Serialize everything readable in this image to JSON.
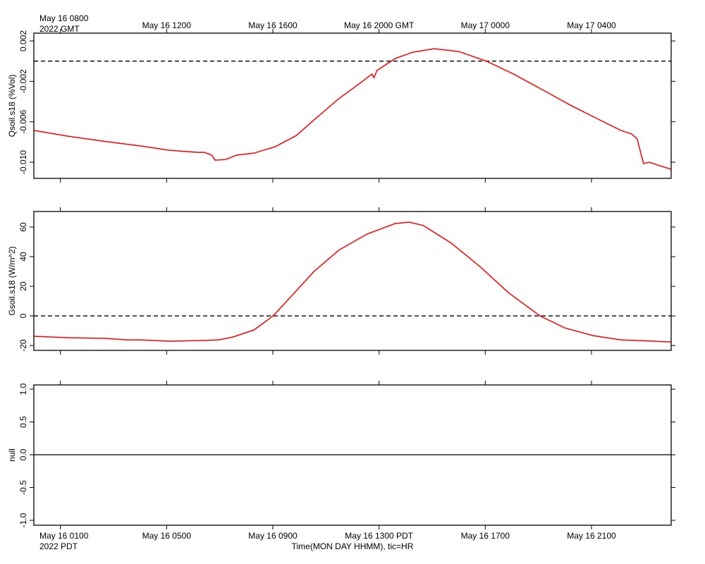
{
  "x_axis": {
    "xlim": [
      0,
      24
    ],
    "xticks": [
      {
        "value": 1,
        "label": "May 16 0100"
      },
      {
        "value": 5,
        "label": "May 16 0500"
      },
      {
        "value": 9,
        "label": "May 16 0900"
      },
      {
        "value": 13,
        "label": "May 16 1300 PDT"
      },
      {
        "value": 17,
        "label": "May 16 1700"
      },
      {
        "value": 21,
        "label": "May 16 2100"
      }
    ],
    "top_labels": [
      "May 16 0800",
      "May 16 1200",
      "May 16 1600",
      "May 16 2000 GMT",
      "May 17 0000",
      "May 17 0400"
    ],
    "top_unit_label": "2022 GMT",
    "bottom_unit_label": "2022 PDT",
    "xlabel": "Time(MON DAY HHMM), tic=HR"
  },
  "chart_data": [
    {
      "type": "line",
      "ylabel": "Qsoil.s18 (%Vol)",
      "ylim": [
        -0.0116,
        0.00277
      ],
      "yticks": [
        0.002,
        -0.002,
        -0.006,
        {
          "value": -0.01,
          "label": "-0.010"
        }
      ],
      "ref_line": {
        "value": 0,
        "style": "dashed"
      },
      "series": [
        {
          "color": "#ff0000",
          "x": [
            0,
            1.28,
            2.58,
            4.04,
            5.1,
            6.17,
            6.43,
            6.7,
            6.83,
            7.23,
            7.63,
            8.29,
            9.09,
            9.89,
            10.55,
            11.48,
            12.28,
            12.73,
            12.81,
            12.92,
            13.61,
            14.27,
            15.07,
            16.0,
            17.06,
            18.12,
            19.19,
            20.25,
            21.31,
            22.11,
            22.51,
            22.72,
            22.96,
            23.17,
            23.57,
            24.0
          ],
          "values": [
            -0.00686,
            -0.00742,
            -0.00791,
            -0.0084,
            -0.00882,
            -0.00903,
            -0.00903,
            -0.00931,
            -0.0098,
            -0.00973,
            -0.00931,
            -0.0091,
            -0.00847,
            -0.00735,
            -0.00582,
            -0.00372,
            -0.00219,
            -0.00128,
            -0.00163,
            -0.00093,
            0.00026,
            0.00088,
            0.00123,
            0.00095,
            -2e-05,
            -0.00135,
            -0.00289,
            -0.00442,
            -0.00582,
            -0.00686,
            -0.00721,
            -0.0077,
            -0.01014,
            -0.01,
            -0.01035,
            -0.0107
          ]
        }
      ]
    },
    {
      "type": "line",
      "ylabel": "Gsoil.s18 (W/m^2)",
      "ylim": [
        -23.3,
        70.5
      ],
      "yticks": [
        -20,
        0,
        20,
        40,
        60
      ],
      "ref_line": {
        "value": 0,
        "style": "dashed"
      },
      "series": [
        {
          "color": "#ff0000",
          "x": [
            0,
            1.38,
            2.71,
            3.51,
            4.04,
            5.1,
            6.17,
            6.96,
            7.49,
            8.29,
            9.01,
            9.75,
            10.55,
            11.48,
            12.54,
            13.61,
            14.14,
            14.67,
            15.73,
            16.8,
            17.87,
            19.06,
            19.99,
            21.05,
            22.11,
            24.0
          ],
          "values": [
            -13.8,
            -14.8,
            -15.2,
            -16.2,
            -16.2,
            -17.1,
            -16.7,
            -16.2,
            -14.3,
            -9.5,
            0,
            14.3,
            30.0,
            44.3,
            55.2,
            62.4,
            63.3,
            61.0,
            49.0,
            33.3,
            15.7,
            0,
            -8.1,
            -13.3,
            -16.2,
            -17.6
          ]
        }
      ]
    },
    {
      "type": "line",
      "ylabel": "null",
      "ylim": [
        -1.075,
        1.065
      ],
      "yticks": [
        {
          "value": 1,
          "label": "1.0"
        },
        {
          "value": 0.5,
          "label": "0.5"
        },
        {
          "value": 0,
          "label": "0.0"
        },
        {
          "value": -0.5,
          "label": "-0.5"
        },
        {
          "value": -1,
          "label": "-1.0"
        }
      ],
      "ref_line": {
        "value": 0,
        "style": "solid"
      },
      "series": []
    }
  ]
}
